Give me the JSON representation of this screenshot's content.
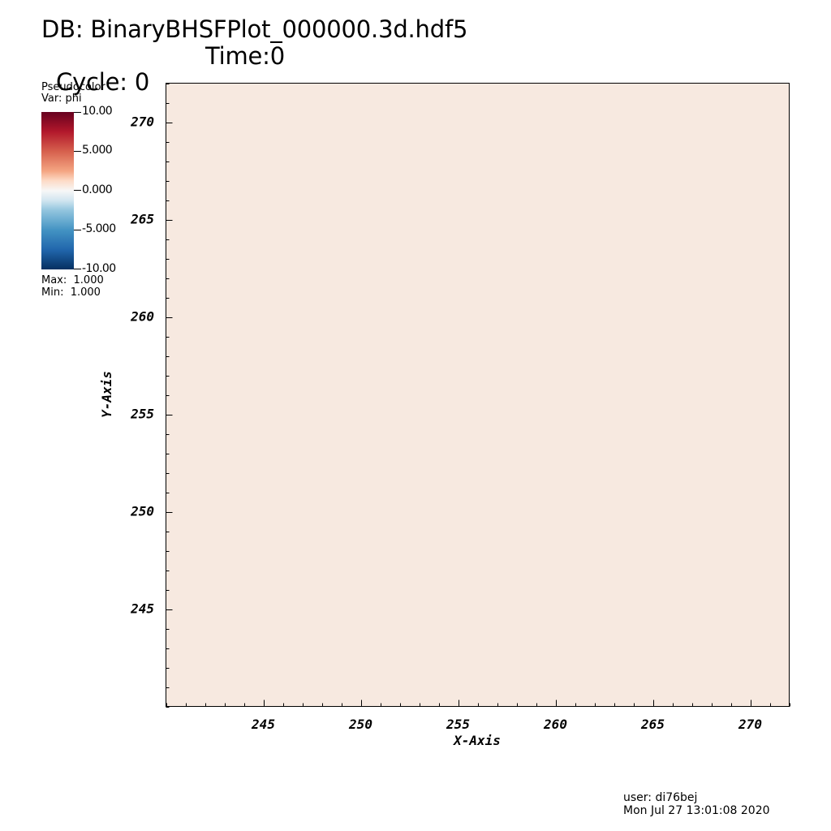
{
  "header": {
    "db_line": "DB: BinaryBHSFPlot_000000.3d.hdf5",
    "cycle_label": "Cycle: 0",
    "time_label": "Time:0"
  },
  "legend": {
    "plot_type": "Pseudocolor",
    "var_label": "Var: phi",
    "ticks": [
      "10.00",
      "5.000",
      "0.000",
      "-5.000",
      "-10.00"
    ],
    "max_label": "Max:  1.000",
    "min_label": "Min:  1.000",
    "colormap": [
      "#67001f",
      "#b2182b",
      "#d6604d",
      "#f4a582",
      "#fddbc7",
      "#f7f7f7",
      "#d1e5f0",
      "#92c5de",
      "#4393c3",
      "#2166ac",
      "#053061"
    ]
  },
  "footer": {
    "user": "user: di76bej",
    "date": "Mon Jul 27 13:01:08 2020"
  },
  "chart_data": {
    "type": "heatmap",
    "title": "DB: BinaryBHSFPlot_000000.3d.hdf5",
    "xlabel": "X-Axis",
    "ylabel": "Y-Axis",
    "variable": "phi",
    "xlim": [
      240,
      272
    ],
    "ylim": [
      240,
      272
    ],
    "xticks": [
      245,
      250,
      255,
      260,
      265,
      270
    ],
    "yticks": [
      245,
      250,
      255,
      260,
      265,
      270
    ],
    "minor_tick_step": 1,
    "value_range": [
      -10,
      10
    ],
    "field_value": 1.0,
    "field_color": "#f7e9e0",
    "grid": false
  }
}
